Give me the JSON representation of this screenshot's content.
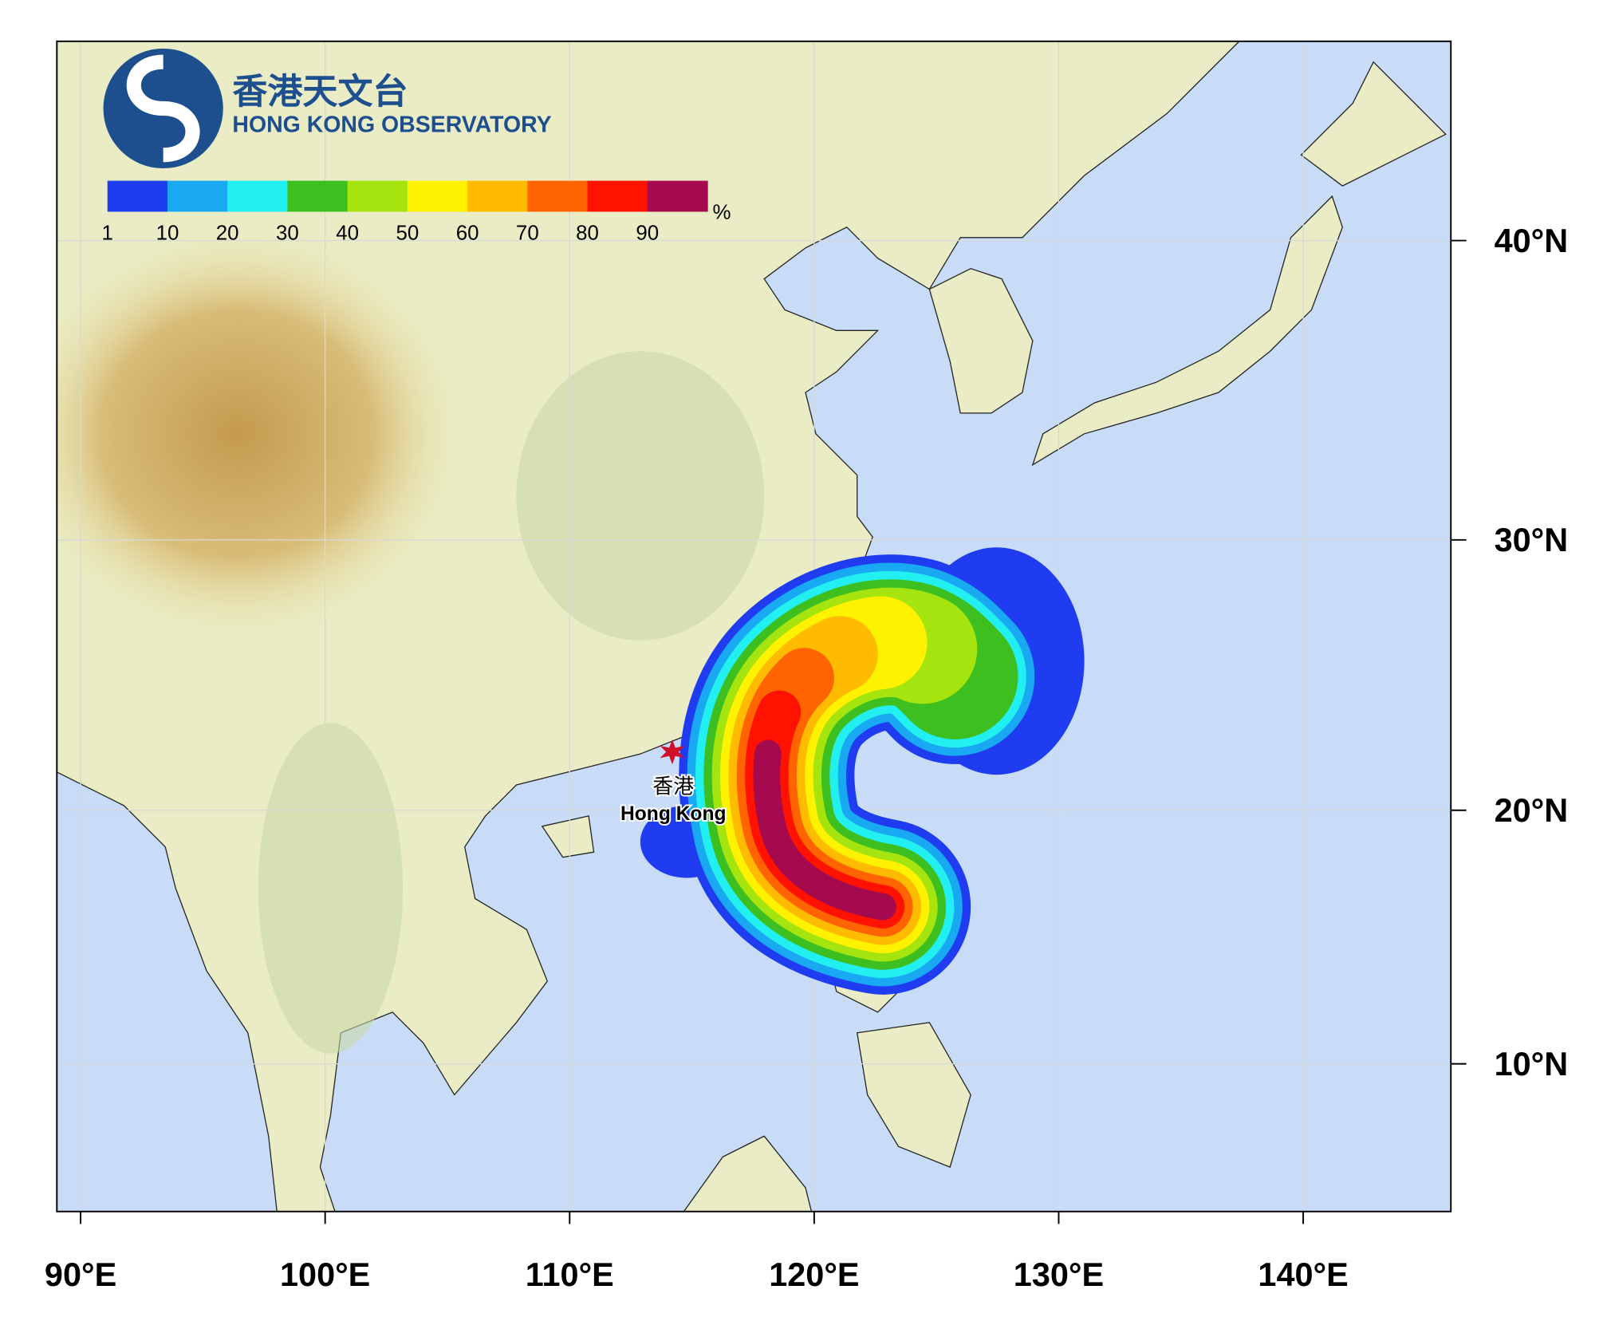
{
  "header": {
    "title_zh": "香港天文台",
    "title_en": "HONG KONG OBSERVATORY"
  },
  "legend": {
    "levels": [
      1,
      10,
      20,
      30,
      40,
      50,
      60,
      70,
      80,
      90
    ],
    "colors": [
      "#1f3cf0",
      "#19a9f2",
      "#22f0f0",
      "#3cbf1f",
      "#a6e40f",
      "#fff200",
      "#ffbb00",
      "#ff6400",
      "#ff1200",
      "#a60a4e"
    ],
    "unit": "%"
  },
  "axes": {
    "lon_ticks": [
      {
        "value": 90,
        "label": "90°E"
      },
      {
        "value": 100,
        "label": "100°E"
      },
      {
        "value": 110,
        "label": "110°E"
      },
      {
        "value": 120,
        "label": "120°E"
      },
      {
        "value": 130,
        "label": "130°E"
      },
      {
        "value": 140,
        "label": "140°E"
      }
    ],
    "lat_ticks": [
      {
        "value": 10,
        "label": "10°N"
      },
      {
        "value": 20,
        "label": "20°N"
      },
      {
        "value": 30,
        "label": "30°N"
      },
      {
        "value": 40,
        "label": "40°N"
      }
    ]
  },
  "place": {
    "name_zh": "香港",
    "name_en": "Hong Kong"
  }
}
